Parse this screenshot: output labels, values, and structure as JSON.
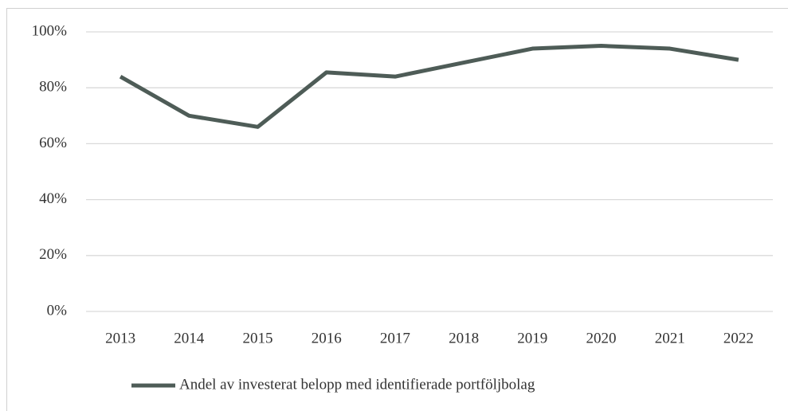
{
  "chart_data": {
    "type": "line",
    "categories": [
      "2013",
      "2014",
      "2015",
      "2016",
      "2017",
      "2018",
      "2019",
      "2020",
      "2021",
      "2022"
    ],
    "series": [
      {
        "name": "Andel av investerat belopp med identifierade portföljbolag",
        "color": "#4e5c57",
        "values": [
          84,
          70,
          66,
          85.5,
          84,
          89,
          94,
          95,
          94,
          90
        ]
      }
    ],
    "ylim": [
      0,
      100
    ],
    "yticks": [
      {
        "value": 0,
        "label": "0%"
      },
      {
        "value": 20,
        "label": "20%"
      },
      {
        "value": 40,
        "label": "40%"
      },
      {
        "value": 60,
        "label": "60%"
      },
      {
        "value": 80,
        "label": "80%"
      },
      {
        "value": 100,
        "label": "100%"
      }
    ],
    "grid": true,
    "legend": "bottom"
  }
}
